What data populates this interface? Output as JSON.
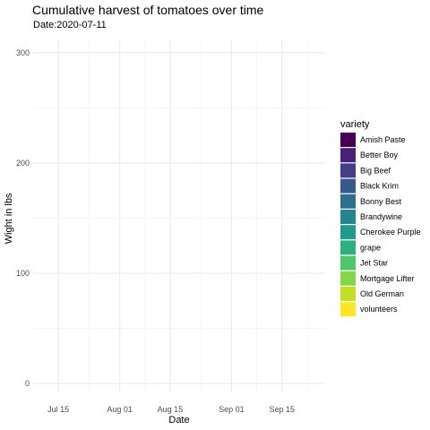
{
  "chart_data": {
    "type": "area",
    "title": "Cumulative harvest of tomatoes over time",
    "subtitle": "Date:2020-07-11",
    "xlabel": "Date",
    "ylabel": "Wight in lbs",
    "x_ticks": [
      "Jul 15",
      "Aug 01",
      "Aug 15",
      "Sep 01",
      "Sep 15"
    ],
    "x_tick_dates": [
      "2020-07-15",
      "2020-08-01",
      "2020-08-15",
      "2020-09-01",
      "2020-09-15"
    ],
    "xlim": [
      "2020-07-08",
      "2020-09-27"
    ],
    "y_ticks": [
      0,
      100,
      200,
      300
    ],
    "ylim": [
      -8,
      312
    ],
    "grid": true,
    "legend_position": "right",
    "legend_title": "variety",
    "series": [
      {
        "name": "Amish Paste",
        "color": "#440154",
        "values": []
      },
      {
        "name": "Better Boy",
        "color": "#482173",
        "values": []
      },
      {
        "name": "Big Beef",
        "color": "#433E85",
        "values": []
      },
      {
        "name": "Black Krim",
        "color": "#38598C",
        "values": []
      },
      {
        "name": "Bonny Best",
        "color": "#2D708E",
        "values": []
      },
      {
        "name": "Brandywine",
        "color": "#25858E",
        "values": []
      },
      {
        "name": "Cherokee Purple",
        "color": "#1E9B8A",
        "values": []
      },
      {
        "name": "grape",
        "color": "#2BB07F",
        "values": []
      },
      {
        "name": "Jet Star",
        "color": "#51C56A",
        "values": []
      },
      {
        "name": "Mortgage Lifter",
        "color": "#85D54A",
        "values": []
      },
      {
        "name": "Old German",
        "color": "#C2DF23",
        "values": []
      },
      {
        "name": "volunteers",
        "color": "#FDE725",
        "values": []
      }
    ]
  }
}
